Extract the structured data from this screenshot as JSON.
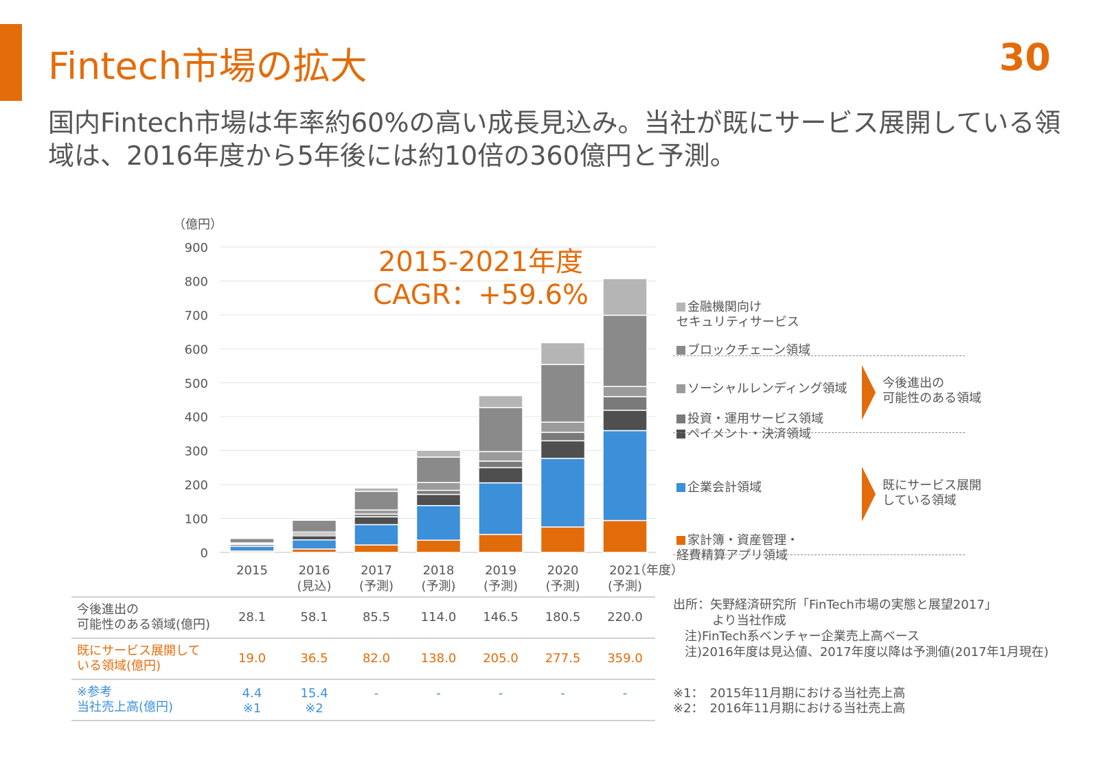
{
  "page": {
    "title": "Fintech市場の拡大",
    "page_number": "30",
    "subtitle": "国内Fintech市場は年率約60%の高い成長見込み。当社が既にサービス展開している領域は、2016年度から5年後には約10倍の360億円と予測。"
  },
  "colors": {
    "accent": "#e36c0a",
    "blue": "#3c8fd9",
    "security": "#b5b5b5",
    "blockchain": "#8a8a8a",
    "social_lending": "#9b9b9b",
    "investment": "#7a7a7a",
    "payment": "#4f4f4f"
  },
  "cagr": {
    "line1": "2015-2021年度",
    "line2": "CAGR：+59.6%"
  },
  "chart_data": {
    "type": "bar",
    "stacked": true,
    "ylabel": "（億円）",
    "xunit": "（年度）",
    "ylim": [
      0,
      900
    ],
    "yticks": [
      0,
      100,
      200,
      300,
      400,
      500,
      600,
      700,
      800,
      900
    ],
    "categories": [
      "2015",
      "2016",
      "2017",
      "2018",
      "2019",
      "2020",
      "2021"
    ],
    "category_sublabels": [
      "",
      "(見込)",
      "(予測)",
      "(予測)",
      "(予測)",
      "(予測)",
      "(予測)"
    ],
    "series": [
      {
        "name": "家計簿・資産管理・経費精算アプリ領域",
        "color": "#e36c0a",
        "values": [
          4,
          10,
          22,
          36,
          53,
          75,
          94
        ]
      },
      {
        "name": "企業会計領域",
        "color": "#3c8fd9",
        "values": [
          14,
          27,
          60,
          102,
          152,
          202,
          265
        ]
      },
      {
        "name": "ペイメント・決済領域",
        "color": "#4f4f4f",
        "values": [
          5,
          12,
          23,
          33,
          45,
          52,
          60
        ]
      },
      {
        "name": "投資・運用サービス領域",
        "color": "#7a7a7a",
        "values": [
          2,
          5,
          8,
          12,
          19,
          25,
          40
        ]
      },
      {
        "name": "ソーシャルレンディング領域",
        "color": "#9b9b9b",
        "values": [
          3,
          6,
          12,
          23,
          28,
          30,
          30
        ]
      },
      {
        "name": "ブロックチェーン領域",
        "color": "#8a8a8a",
        "values": [
          13,
          35,
          55,
          75,
          130,
          170,
          210
        ]
      },
      {
        "name": "金融機関向けセキュリティサービス",
        "color": "#b5b5b5",
        "values": [
          2,
          3,
          10,
          20,
          35,
          64,
          108
        ]
      }
    ]
  },
  "legend": {
    "security": "金融機関向け\nセキュリティサービス",
    "blockchain": "ブロックチェーン領域",
    "social_lending": "ソーシャルレンディング領域",
    "investment": "投資・運用サービス領域",
    "payment": "ペイメント・決済領域",
    "corporate_accounting": "企業会計領域",
    "household": "家計簿・資産管理・\n経費精算アプリ領域",
    "group_future": "今後進出の\n可能性のある領域",
    "group_existing": "既にサービス展開\nしている領域"
  },
  "table": {
    "rows": [
      {
        "label": "今後進出の\n可能性のある領域(億円)",
        "values": [
          "28.1",
          "58.1",
          "85.5",
          "114.0",
          "146.5",
          "180.5",
          "220.0"
        ]
      },
      {
        "label": "既にサービス展開して\nいる領域(億円)",
        "values": [
          "19.0",
          "36.5",
          "82.0",
          "138.0",
          "205.0",
          "277.5",
          "359.0"
        ]
      },
      {
        "label": "※参考\n当社売上高(億円)",
        "values": [
          "4.4\n※1",
          "15.4\n※2",
          "-",
          "-",
          "-",
          "-",
          "-"
        ]
      }
    ]
  },
  "source": {
    "line1": "出所：矢野経済研究所「FinTech市場の実態と展望2017」",
    "line2": "より当社作成",
    "line3": "注)FinTech系ベンチャー企業売上高ベース",
    "line4": "注)2016年度は見込値、2017年度以降は予測値(2017年1月現在)"
  },
  "footnotes": {
    "n1": "※1：　2015年11月期における当社売上高",
    "n2": "※2：　2016年11月期における当社売上高"
  }
}
